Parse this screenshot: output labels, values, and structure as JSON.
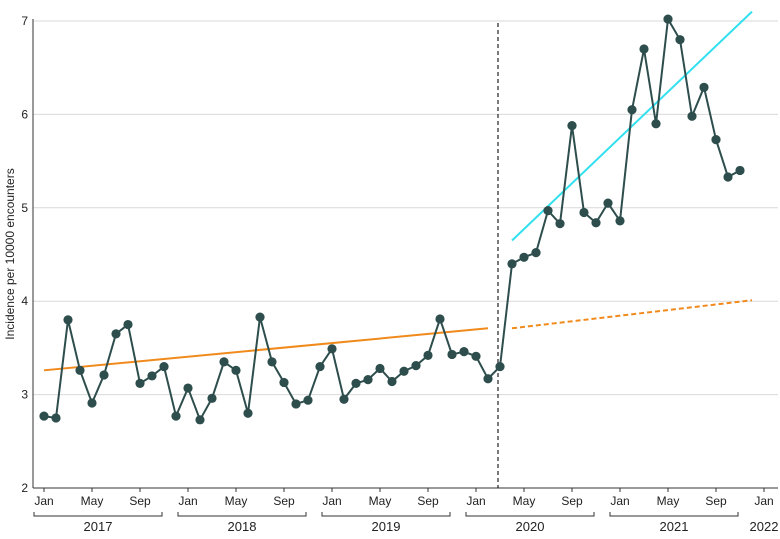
{
  "chart_data": {
    "type": "line",
    "title": "",
    "ylabel": "Incidence per 10000 encounters",
    "xlabel": "",
    "ylim": [
      2,
      7
    ],
    "yticks": [
      2,
      3,
      4,
      5,
      6,
      7
    ],
    "xlim": [
      0,
      60
    ],
    "month_ticks": [
      {
        "m": 0,
        "label": "Jan"
      },
      {
        "m": 4,
        "label": "May"
      },
      {
        "m": 8,
        "label": "Sep"
      },
      {
        "m": 12,
        "label": "Jan"
      },
      {
        "m": 16,
        "label": "May"
      },
      {
        "m": 20,
        "label": "Sep"
      },
      {
        "m": 24,
        "label": "Jan"
      },
      {
        "m": 28,
        "label": "May"
      },
      {
        "m": 32,
        "label": "Sep"
      },
      {
        "m": 36,
        "label": "Jan"
      },
      {
        "m": 40,
        "label": "May"
      },
      {
        "m": 44,
        "label": "Sep"
      },
      {
        "m": 48,
        "label": "Jan"
      },
      {
        "m": 52,
        "label": "May"
      },
      {
        "m": 56,
        "label": "Sep"
      },
      {
        "m": 60,
        "label": "Jan"
      }
    ],
    "years": [
      {
        "label": "2017",
        "start": 0,
        "end": 9
      },
      {
        "label": "2018",
        "start": 12,
        "end": 21
      },
      {
        "label": "2019",
        "start": 24,
        "end": 33
      },
      {
        "label": "2020",
        "start": 36,
        "end": 45
      },
      {
        "label": "2021",
        "start": 48,
        "end": 57
      },
      {
        "label": "2022",
        "start": 60,
        "end": 60
      }
    ],
    "interruption_month": 38,
    "series": [
      {
        "type": "observed",
        "color": "#2e4d4d",
        "values": [
          2.77,
          2.75,
          3.8,
          3.26,
          2.91,
          3.21,
          3.65,
          3.75,
          3.12,
          3.2,
          3.3,
          2.77,
          3.07,
          2.73,
          2.96,
          3.35,
          3.26,
          2.8,
          3.83,
          3.35,
          3.13,
          2.9,
          2.94,
          3.3,
          3.49,
          2.95,
          3.12,
          3.16,
          3.28,
          3.14,
          3.25,
          3.31,
          3.42,
          3.81,
          3.43,
          3.46,
          3.41,
          3.17,
          3.3,
          4.4,
          4.47,
          4.52,
          4.97,
          4.83,
          5.88,
          4.95,
          4.84,
          5.05,
          4.86,
          6.05,
          6.7,
          5.9,
          7.02,
          6.8,
          5.98,
          6.29,
          5.73,
          5.33,
          5.4
        ]
      },
      {
        "type": "trend-pre",
        "color": "#f08a1c",
        "dashed": false,
        "points": [
          [
            0,
            3.26
          ],
          [
            37,
            3.71
          ]
        ]
      },
      {
        "type": "trend-counterfactual",
        "color": "#f08a1c",
        "dashed": true,
        "points": [
          [
            39,
            3.71
          ],
          [
            59,
            4.01
          ]
        ]
      },
      {
        "type": "trend-post",
        "color": "#33e0ef",
        "dashed": false,
        "points": [
          [
            39,
            4.65
          ],
          [
            59,
            7.1
          ]
        ]
      }
    ]
  }
}
